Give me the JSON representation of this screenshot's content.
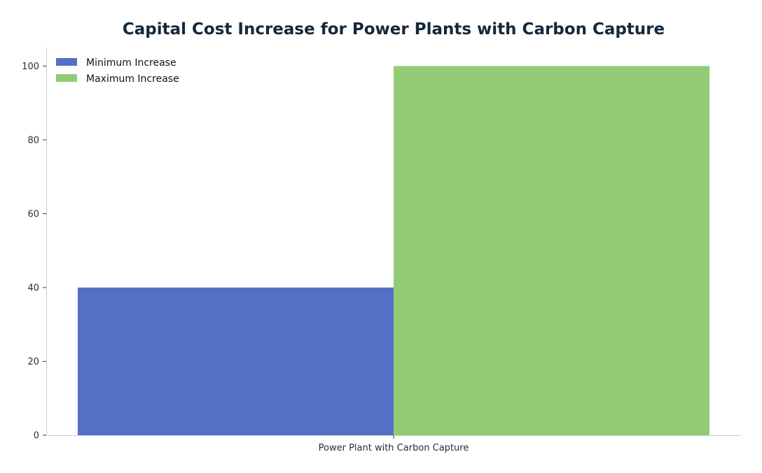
{
  "chart_data": {
    "type": "bar",
    "title": "Capital Cost Increase for Power Plants with Carbon Capture",
    "xlabel": "",
    "ylabel": "",
    "categories": [
      "Power Plant with Carbon Capture"
    ],
    "series": [
      {
        "name": "Minimum Increase",
        "values": [
          40
        ],
        "color": "#5470c6"
      },
      {
        "name": "Maximum Increase",
        "values": [
          100
        ],
        "color": "#91cc75"
      }
    ],
    "ylim": [
      0,
      105
    ],
    "yticks": [
      0,
      20,
      40,
      60,
      80,
      100
    ],
    "grid": false,
    "legend_position": "top-left"
  }
}
